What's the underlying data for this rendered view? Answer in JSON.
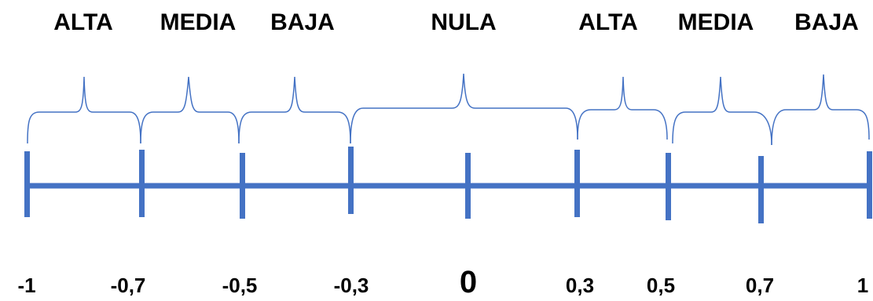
{
  "category_labels": [
    "ALTA",
    "MEDIA",
    "BAJA",
    "NULA",
    "ALTA",
    "MEDIA",
    "BAJA"
  ],
  "tick_labels": [
    "-1",
    "-0,7",
    "-0,5",
    "-0,3",
    "0",
    "0,3",
    "0,5",
    "0,7",
    "1"
  ],
  "colors": {
    "axis": "#4472C4",
    "brace": "#4472C4",
    "text": "#000000"
  }
}
